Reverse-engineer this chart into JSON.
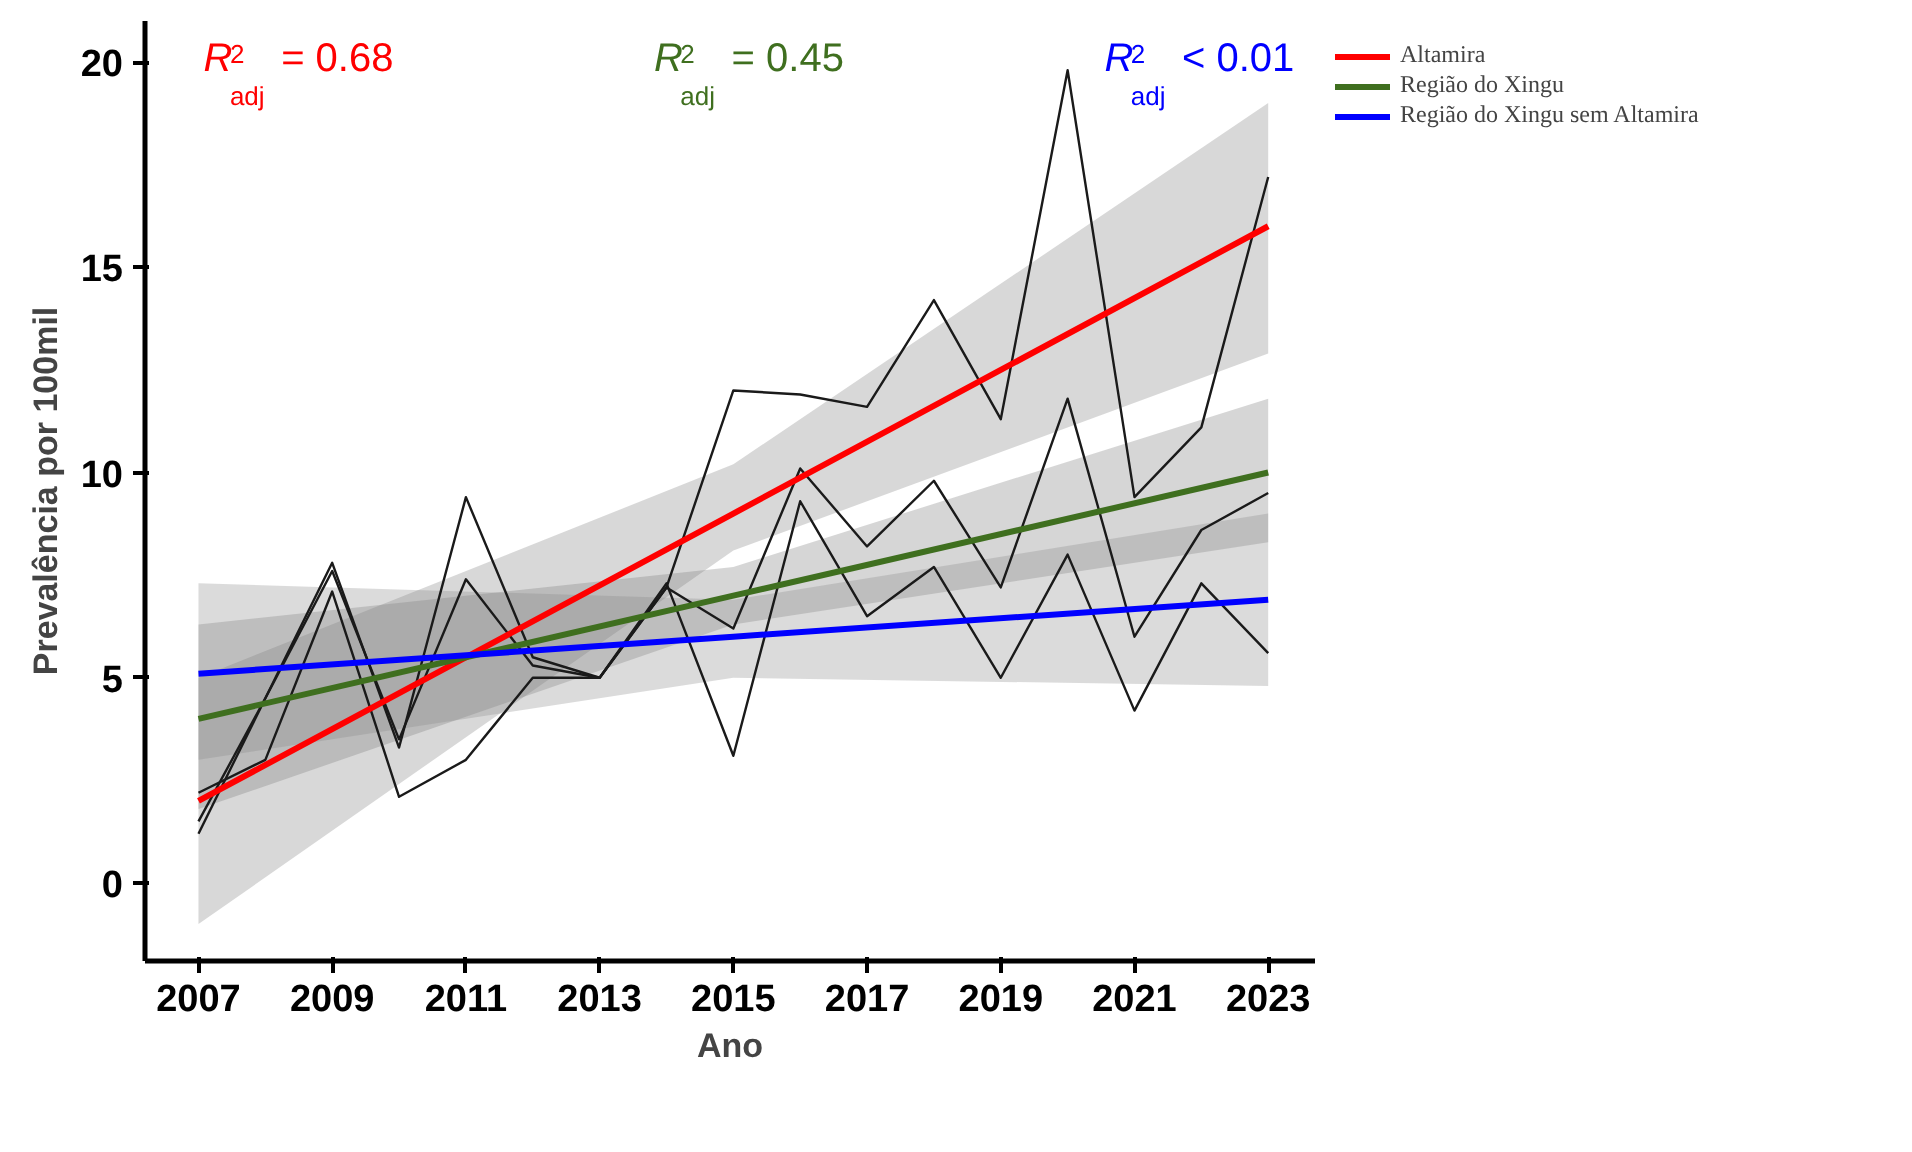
{
  "chart_data": {
    "type": "line",
    "xlabel": "Ano",
    "ylabel": "Prevalência por 100mil",
    "xlim": [
      2006.2,
      2023.7
    ],
    "ylim": [
      -1.9,
      21
    ],
    "xticks": [
      2007,
      2009,
      2011,
      2013,
      2015,
      2017,
      2019,
      2021,
      2023
    ],
    "yticks": [
      0,
      5,
      10,
      15,
      20
    ],
    "grid": false,
    "legend": "top right",
    "annotations": [
      "R$^{2}$$_{adj}$ = 0.68",
      "R$^{2}$$_{adj}$ = 0.45",
      "R$^{2}$$_{adj}$ < 0.01"
    ],
    "x": [
      2007,
      2008,
      2009,
      2010,
      2011,
      2012,
      2013,
      2014,
      2015,
      2016,
      2017,
      2018,
      2019,
      2020,
      2021,
      2022,
      2023
    ],
    "series": [
      {
        "name": "Altamira",
        "color": "#ff0000",
        "x": [
          2007,
          2015,
          2023
        ],
        "values": [
          2.0,
          9.0,
          16.0
        ],
        "lower": [
          -1.0,
          8.1,
          12.9
        ],
        "upper": [
          5.0,
          10.2,
          19.0
        ]
      },
      {
        "name": "Região do Xingu",
        "color": "#3f6f1f",
        "x": [
          2007,
          2015,
          2023
        ],
        "values": [
          4.0,
          7.0,
          10.0
        ],
        "lower": [
          1.8,
          6.3,
          8.3
        ],
        "upper": [
          6.3,
          7.7,
          11.8
        ]
      },
      {
        "name": "Região do Xingu sem Altamira",
        "color": "#0000ff",
        "x": [
          2007,
          2015,
          2023
        ],
        "values": [
          5.1,
          6.0,
          6.9
        ],
        "lower": [
          3.0,
          5.0,
          4.8
        ],
        "upper": [
          7.3,
          6.9,
          9.0
        ]
      },
      {
        "color": "#1a1a1a",
        "values": [
          1.2,
          4.5,
          7.8,
          3.3,
          9.4,
          5.5,
          5.0,
          7.2,
          12.0,
          11.9,
          11.6,
          14.2,
          11.3,
          19.8,
          9.4,
          11.1,
          17.2
        ]
      },
      {
        "color": "#1a1a1a",
        "values": [
          1.5,
          4.5,
          7.6,
          3.5,
          7.4,
          5.3,
          5.0,
          7.2,
          6.2,
          10.1,
          8.2,
          9.8,
          7.2,
          11.8,
          6.0,
          8.6,
          9.5
        ]
      },
      {
        "color": "#1a1a1a",
        "values": [
          2.2,
          3.0,
          7.1,
          2.1,
          3.0,
          5.0,
          5.0,
          7.3,
          3.1,
          9.3,
          6.5,
          7.7,
          5.0,
          8.0,
          4.2,
          7.3,
          5.6
        ]
      }
    ]
  }
}
